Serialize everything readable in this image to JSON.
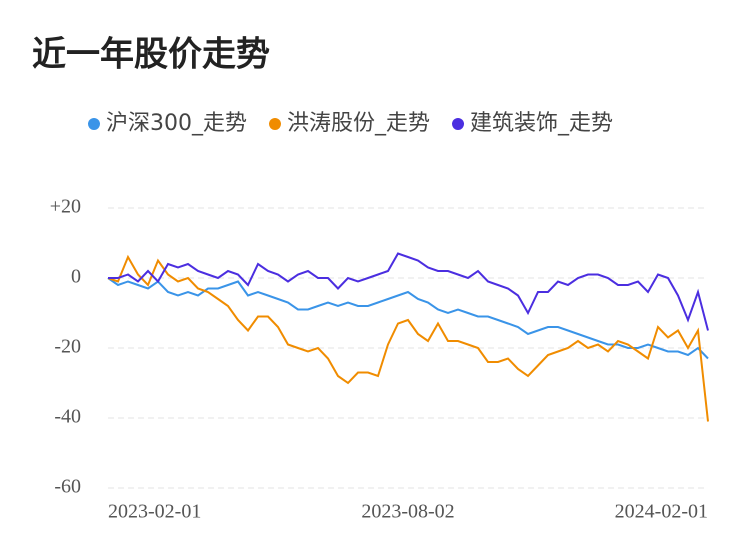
{
  "chart_data": {
    "type": "line",
    "title": "近一年股价走势",
    "categories": [
      "2023-02-01",
      null,
      null,
      null,
      null,
      null,
      null,
      null,
      null,
      null,
      null,
      null,
      null,
      null,
      null,
      null,
      null,
      null,
      null,
      null,
      null,
      null,
      null,
      null,
      null,
      null,
      null,
      null,
      null,
      null,
      "2023-08-02",
      null,
      null,
      null,
      null,
      null,
      null,
      null,
      null,
      null,
      null,
      null,
      null,
      null,
      null,
      null,
      null,
      null,
      null,
      null,
      null,
      null,
      null,
      null,
      null,
      null,
      null,
      null,
      null,
      null,
      "2024-02-01"
    ],
    "series": [
      {
        "name": "沪深300_走势",
        "color": "#3a94e8",
        "values": [
          0,
          -2,
          -1,
          -2,
          -3,
          -1,
          -4,
          -5,
          -4,
          -5,
          -3,
          -3,
          -2,
          -1,
          -5,
          -4,
          -5,
          -6,
          -7,
          -9,
          -9,
          -8,
          -7,
          -8,
          -7,
          -8,
          -8,
          -7,
          -6,
          -5,
          -4,
          -6,
          -7,
          -9,
          -10,
          -9,
          -10,
          -11,
          -11,
          -12,
          -13,
          -14,
          -16,
          -15,
          -14,
          -14,
          -15,
          -16,
          -17,
          -18,
          -19,
          -19,
          -20,
          -20,
          -19,
          -20,
          -21,
          -21,
          -22,
          -20,
          -23
        ]
      },
      {
        "name": "洪涛股份_走势",
        "color": "#f08c00",
        "values": [
          0,
          -1,
          6,
          1,
          -2,
          5,
          1,
          -1,
          0,
          -3,
          -4,
          -6,
          -8,
          -12,
          -15,
          -11,
          -11,
          -14,
          -19,
          -20,
          -21,
          -20,
          -23,
          -28,
          -30,
          -27,
          -27,
          -28,
          -19,
          -13,
          -12,
          -16,
          -18,
          -13,
          -18,
          -18,
          -19,
          -20,
          -24,
          -24,
          -23,
          -26,
          -28,
          -25,
          -22,
          -21,
          -20,
          -18,
          -20,
          -19,
          -21,
          -18,
          -19,
          -21,
          -23,
          -14,
          -17,
          -15,
          -20,
          -15,
          -41
        ]
      },
      {
        "name": "建筑装饰_走势",
        "color": "#4b2ee0",
        "values": [
          0,
          0,
          1,
          -1,
          2,
          -1,
          4,
          3,
          4,
          2,
          1,
          0,
          2,
          1,
          -2,
          4,
          2,
          1,
          -1,
          1,
          2,
          0,
          0,
          -3,
          0,
          -1,
          0,
          1,
          2,
          7,
          6,
          5,
          3,
          2,
          2,
          1,
          0,
          2,
          -1,
          -2,
          -3,
          -5,
          -10,
          -4,
          -4,
          -1,
          -2,
          0,
          1,
          1,
          0,
          -2,
          -2,
          -1,
          -4,
          1,
          0,
          -5,
          -12,
          -4,
          -15
        ]
      }
    ],
    "ylim": [
      -60,
      20
    ],
    "yticks": [
      -60,
      -40,
      -20,
      0,
      {
        "value": 20,
        "label": "+20"
      }
    ],
    "grid": true
  }
}
